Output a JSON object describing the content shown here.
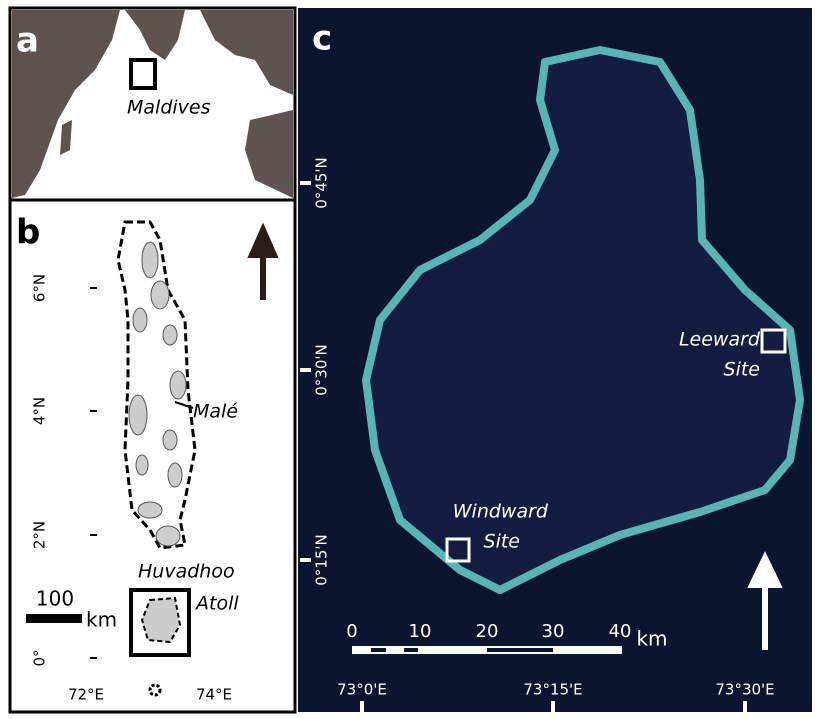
{
  "panel_a": {
    "label": "a",
    "place": "Maldives"
  },
  "panel_b": {
    "label": "b",
    "lat_labels": [
      "6°N",
      "4°N",
      "2°N",
      "0°"
    ],
    "lon_labels": [
      "72°E",
      "74°E"
    ],
    "city": "Malé",
    "atoll": [
      "Huvadhoo",
      "Atoll"
    ],
    "scale": [
      "100",
      "km"
    ]
  },
  "panel_c": {
    "label": "c",
    "lat_labels": [
      "0°45'N",
      "0°30'N",
      "0°15'N"
    ],
    "lon_labels": [
      "73°0'E",
      "73°15'E",
      "73°30'E"
    ],
    "leeward": [
      "Leeward",
      "Site"
    ],
    "windward": [
      "Windward",
      "Site"
    ],
    "scale": [
      "0",
      "10",
      "20",
      "30",
      "40",
      "km"
    ]
  }
}
